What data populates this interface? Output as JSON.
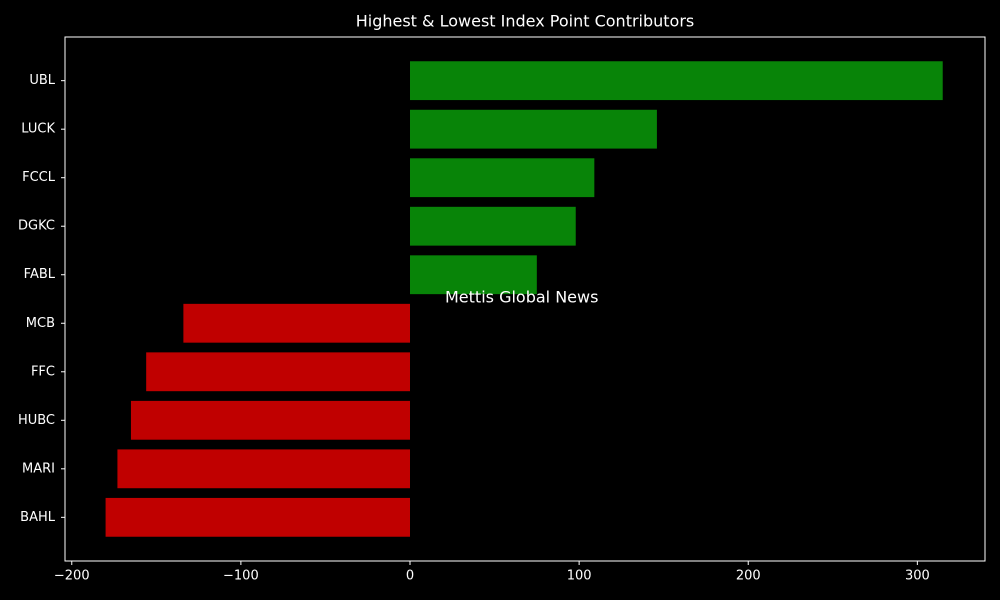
{
  "chart_data": {
    "type": "barh",
    "title": "Highest & Lowest Index Point Contributors",
    "categories": [
      "UBL",
      "LUCK",
      "FCCL",
      "DGKC",
      "FABL",
      "MCB",
      "FFC",
      "HUBC",
      "MARI",
      "BAHL"
    ],
    "values": [
      315,
      146,
      109,
      98,
      75,
      -134,
      -156,
      -165,
      -173,
      -180
    ],
    "colors": [
      "#088408",
      "#088408",
      "#088408",
      "#088408",
      "#088408",
      "#c00000",
      "#c00000",
      "#c00000",
      "#c00000",
      "#c00000"
    ],
    "xlim": [
      -204,
      340
    ],
    "xticks": [
      {
        "value": -200,
        "label": "−200"
      },
      {
        "value": -100,
        "label": "−100"
      },
      0,
      100,
      200,
      300
    ],
    "annotation": "Mettis Global News",
    "annotation_color": "#c8651a",
    "grid": false
  }
}
